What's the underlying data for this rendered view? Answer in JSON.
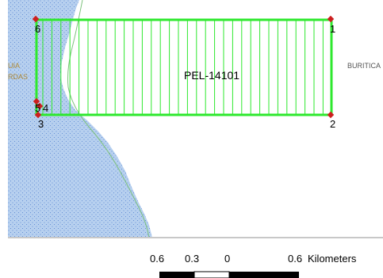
{
  "map": {
    "parcel_label": "PEL-14101",
    "corner_labels": [
      "1",
      "2",
      "3",
      "4",
      "5",
      "6"
    ],
    "left_place_label_top": "UIA",
    "left_place_label_bottom": "RDAS",
    "right_place_label": "BURITICA",
    "colors": {
      "water": "#b7d0ef",
      "water_dots": "#4f7fd0",
      "parcel_outline": "#2ee82e",
      "parcel_hatch": "#2ee82e",
      "vertex": "#cc1f1f",
      "trail": "#7fc27f",
      "place_label_left": "#b08b3a",
      "place_label_right": "#555555",
      "frame_line": "#c8c8c8"
    }
  },
  "scale_bar": {
    "tick_labels": [
      "0.6",
      "0.3",
      "0",
      "0.6"
    ],
    "units": "Kilometers"
  }
}
